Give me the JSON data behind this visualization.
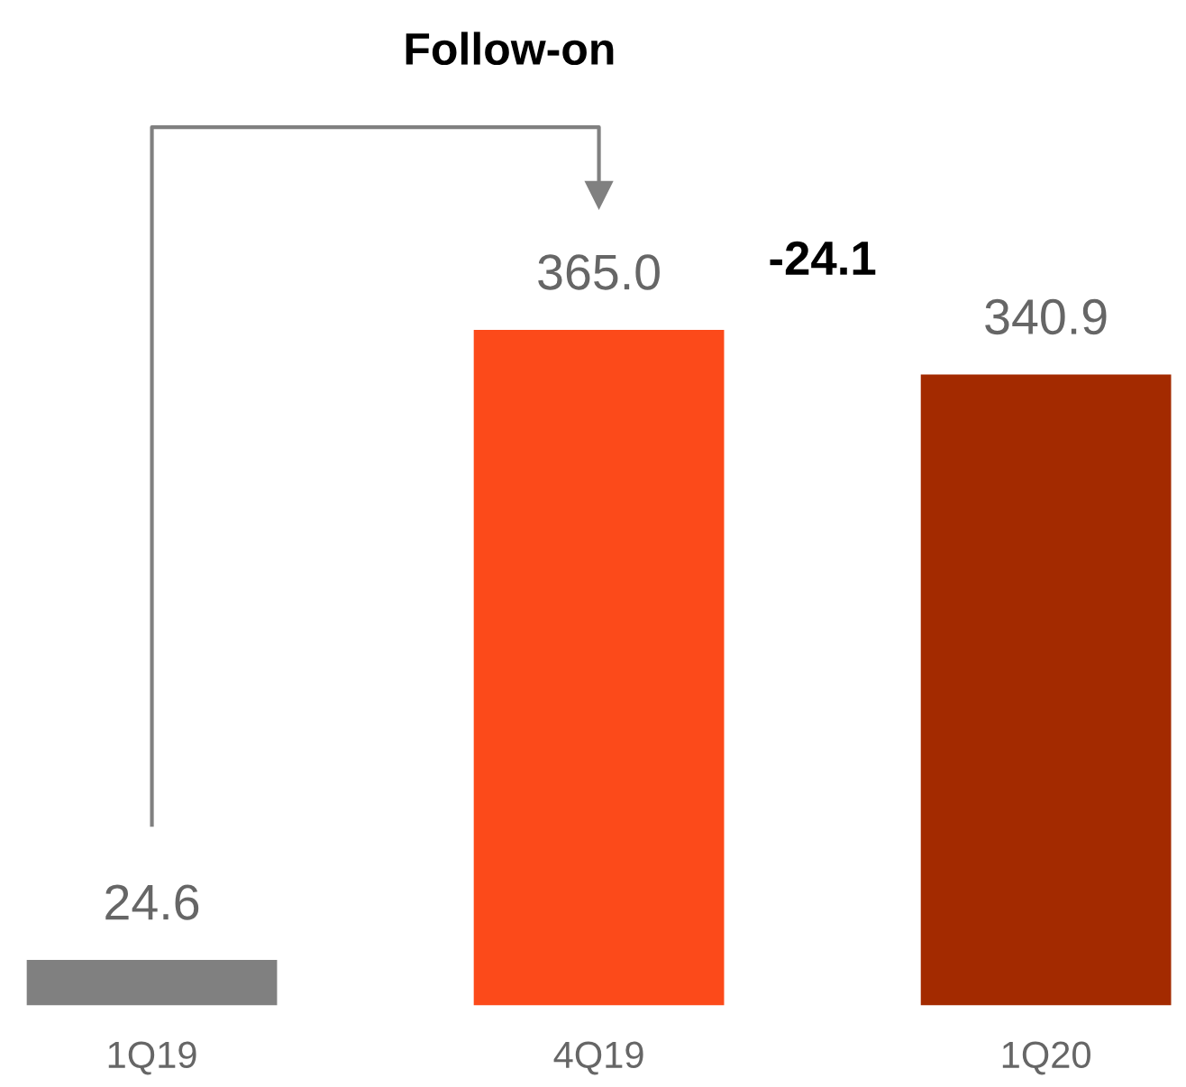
{
  "chart_data": {
    "type": "bar",
    "categories": [
      "1Q19",
      "4Q19",
      "1Q20"
    ],
    "values": [
      24.6,
      365.0,
      340.9
    ],
    "colors": [
      "#808080",
      "#fc4a1a",
      "#a32a00"
    ],
    "value_labels": [
      "24.6",
      "365.0",
      "340.9"
    ],
    "annotations": [
      "Follow-on",
      "-24.1"
    ],
    "grid": false,
    "legend": false
  }
}
